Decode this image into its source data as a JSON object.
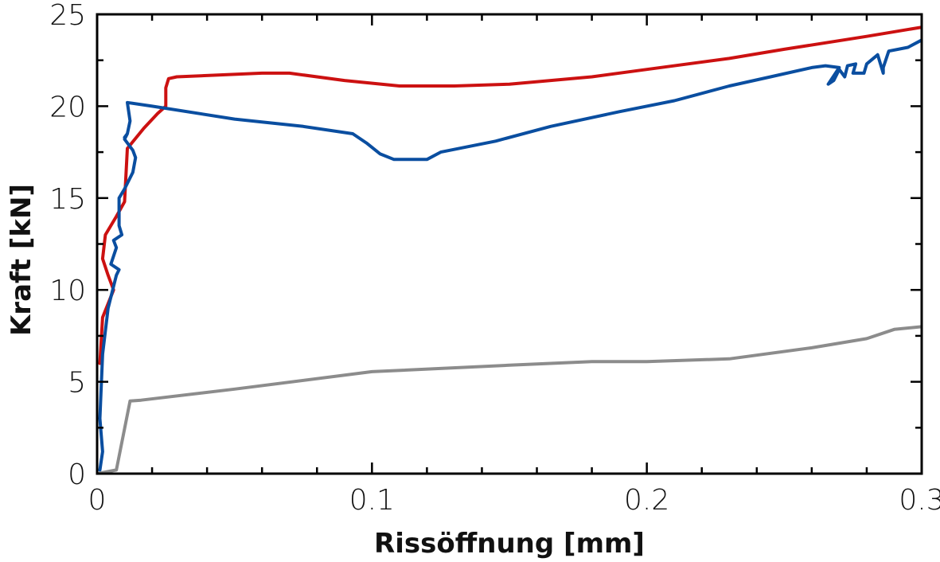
{
  "chart_data": {
    "type": "line",
    "title": "",
    "xlabel": "Rissöffnung [mm]",
    "ylabel": "Kraft [kN]",
    "xlim": [
      0,
      0.3
    ],
    "ylim": [
      0,
      25
    ],
    "xticks": [
      0,
      0.1,
      0.2,
      0.3
    ],
    "xtick_labels": [
      "0",
      "0.1",
      "0.2",
      "0.3"
    ],
    "yticks": [
      0,
      5,
      10,
      15,
      20,
      25
    ],
    "ytick_labels": [
      "0",
      "5",
      "10",
      "15",
      "20",
      "25"
    ],
    "grid": false,
    "legend": "none",
    "series": [
      {
        "color": "#cc1111",
        "points": [
          [
            0.001,
            6.0
          ],
          [
            0.002,
            8.5
          ],
          [
            0.006,
            10.0
          ],
          [
            0.004,
            10.8
          ],
          [
            0.002,
            11.7
          ],
          [
            0.003,
            13.0
          ],
          [
            0.007,
            14.0
          ],
          [
            0.01,
            14.8
          ],
          [
            0.011,
            17.7
          ],
          [
            0.017,
            18.8
          ],
          [
            0.022,
            19.6
          ],
          [
            0.025,
            20.0
          ],
          [
            0.025,
            21.0
          ],
          [
            0.026,
            21.5
          ],
          [
            0.029,
            21.6
          ],
          [
            0.06,
            21.8
          ],
          [
            0.07,
            21.8
          ],
          [
            0.09,
            21.4
          ],
          [
            0.11,
            21.1
          ],
          [
            0.13,
            21.1
          ],
          [
            0.15,
            21.2
          ],
          [
            0.18,
            21.6
          ],
          [
            0.2,
            22.0
          ],
          [
            0.23,
            22.6
          ],
          [
            0.25,
            23.1
          ],
          [
            0.28,
            23.8
          ],
          [
            0.3,
            24.3
          ]
        ]
      },
      {
        "color": "#0a4ea0",
        "points": [
          [
            0.001,
            0.2
          ],
          [
            0.002,
            1.2
          ],
          [
            0.001,
            3.0
          ],
          [
            0.002,
            6.5
          ],
          [
            0.004,
            9.0
          ],
          [
            0.006,
            10.2
          ],
          [
            0.007,
            10.8
          ],
          [
            0.008,
            11.1
          ],
          [
            0.005,
            11.4
          ],
          [
            0.007,
            12.3
          ],
          [
            0.006,
            12.7
          ],
          [
            0.009,
            13.0
          ],
          [
            0.008,
            13.5
          ],
          [
            0.008,
            15.0
          ],
          [
            0.01,
            15.5
          ],
          [
            0.013,
            16.4
          ],
          [
            0.014,
            17.2
          ],
          [
            0.013,
            17.6
          ],
          [
            0.01,
            18.2
          ],
          [
            0.011,
            18.5
          ],
          [
            0.01,
            18.3
          ],
          [
            0.011,
            18.5
          ],
          [
            0.012,
            19.2
          ],
          [
            0.011,
            20.2
          ],
          [
            0.02,
            20.0
          ],
          [
            0.05,
            19.3
          ],
          [
            0.075,
            18.9
          ],
          [
            0.093,
            18.5
          ],
          [
            0.098,
            18.0
          ],
          [
            0.103,
            17.4
          ],
          [
            0.108,
            17.1
          ],
          [
            0.12,
            17.1
          ],
          [
            0.125,
            17.5
          ],
          [
            0.145,
            18.1
          ],
          [
            0.165,
            18.9
          ],
          [
            0.19,
            19.7
          ],
          [
            0.21,
            20.3
          ],
          [
            0.23,
            21.1
          ],
          [
            0.245,
            21.6
          ],
          [
            0.26,
            22.1
          ],
          [
            0.265,
            22.2
          ],
          [
            0.27,
            22.1
          ],
          [
            0.266,
            21.2
          ],
          [
            0.268,
            21.4
          ],
          [
            0.27,
            22.0
          ],
          [
            0.272,
            21.6
          ],
          [
            0.273,
            22.2
          ],
          [
            0.276,
            22.3
          ],
          [
            0.275,
            21.8
          ],
          [
            0.279,
            21.8
          ],
          [
            0.28,
            22.3
          ],
          [
            0.284,
            22.8
          ],
          [
            0.286,
            21.8
          ],
          [
            0.286,
            22.1
          ],
          [
            0.288,
            23.0
          ],
          [
            0.295,
            23.2
          ],
          [
            0.3,
            23.6
          ]
        ]
      },
      {
        "color": "#8c8c8c",
        "points": [
          [
            0.0,
            0.0
          ],
          [
            0.007,
            0.2
          ],
          [
            0.012,
            3.95
          ],
          [
            0.016,
            4.0
          ],
          [
            0.05,
            4.6
          ],
          [
            0.1,
            5.55
          ],
          [
            0.15,
            5.9
          ],
          [
            0.18,
            6.1
          ],
          [
            0.2,
            6.1
          ],
          [
            0.23,
            6.25
          ],
          [
            0.26,
            6.85
          ],
          [
            0.28,
            7.35
          ],
          [
            0.29,
            7.85
          ],
          [
            0.3,
            8.0
          ]
        ]
      }
    ]
  }
}
